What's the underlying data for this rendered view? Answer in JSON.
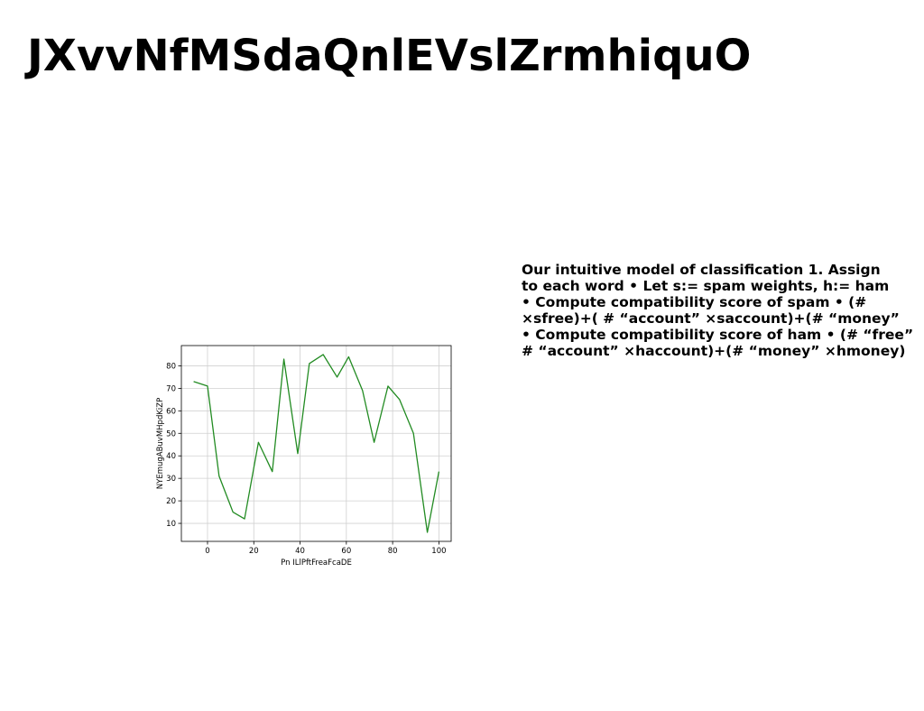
{
  "page": {
    "title": "JXvvNfMSdaQnlEVslZrmhiquO"
  },
  "text_block": {
    "lines": [
      "Our intuitive model of classification 1. Assign",
      "to each word • Let s:= spam weights, h:= ham",
      "• Compute compatibility score of spam • (#",
      "×sfree)+( # “account” ×saccount)+(# “money”",
      "• Compute compatibility score of ham • (# “free”",
      "# “account” ×haccount)+(# “money” ×hmoney)"
    ]
  },
  "chart_data": {
    "type": "line",
    "title": "",
    "xlabel": "Pn ILlPftFreaFcaDE",
    "ylabel": "NYEmugABuvMHpdKiZP",
    "x": [
      -6,
      0,
      5,
      11,
      16,
      22,
      28,
      33,
      39,
      44,
      50,
      56,
      61,
      67,
      72,
      78,
      83,
      89,
      95,
      100
    ],
    "series": [
      {
        "values": [
          73,
          71,
          31,
          15,
          12,
          46,
          33,
          83,
          41,
          81,
          85,
          75,
          84,
          69,
          46,
          71,
          65,
          50,
          6,
          33
        ]
      }
    ],
    "xlim": [
      -11.3,
      105.3
    ],
    "ylim": [
      2,
      89
    ],
    "xticks": [
      0,
      20,
      40,
      60,
      80,
      100
    ],
    "yticks": [
      10,
      20,
      30,
      40,
      50,
      60,
      70,
      80
    ],
    "grid": true,
    "line_color": "#228b22"
  }
}
